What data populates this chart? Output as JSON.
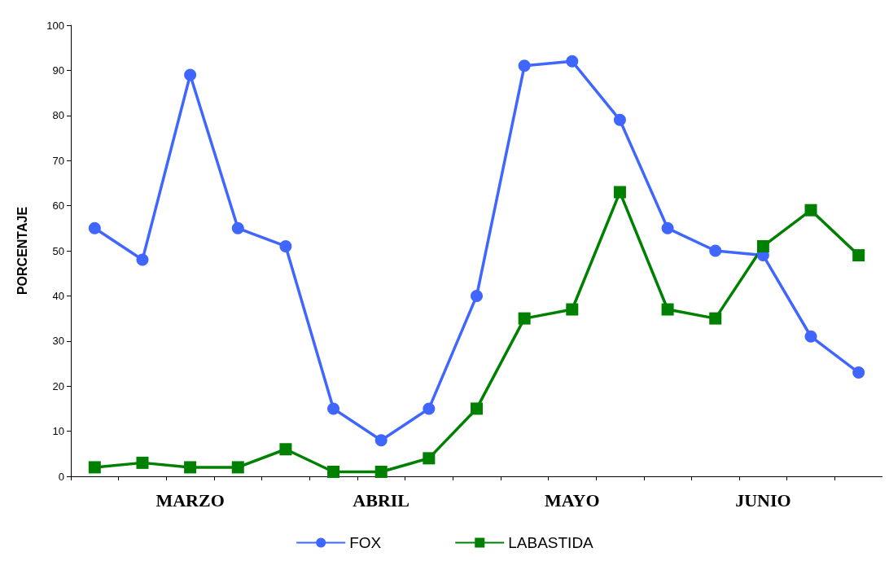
{
  "chart_data": {
    "type": "line",
    "ylabel": "PORCENTAJE",
    "categories": [
      null,
      null,
      "MARZO",
      null,
      null,
      null,
      "ABRIL",
      null,
      null,
      null,
      "MAYO",
      null,
      null,
      null,
      "JUNIO",
      null,
      null
    ],
    "series": [
      {
        "name": "FOX",
        "color": "#3f66ff",
        "marker": "circle",
        "values": [
          55,
          48,
          89,
          55,
          51,
          15,
          8,
          15,
          40,
          91,
          92,
          79,
          55,
          50,
          49,
          31,
          23
        ]
      },
      {
        "name": "LABASTIDA",
        "color": "#008000",
        "marker": "square",
        "values": [
          2,
          3,
          2,
          2,
          6,
          1,
          1,
          4,
          15,
          35,
          37,
          63,
          37,
          35,
          51,
          59,
          49
        ]
      }
    ],
    "ylim": [
      0,
      100
    ],
    "yticks": [
      0,
      10,
      20,
      30,
      40,
      50,
      60,
      70,
      80,
      90,
      100
    ],
    "grid": false,
    "legend": "bottom",
    "line_style": "solid"
  }
}
